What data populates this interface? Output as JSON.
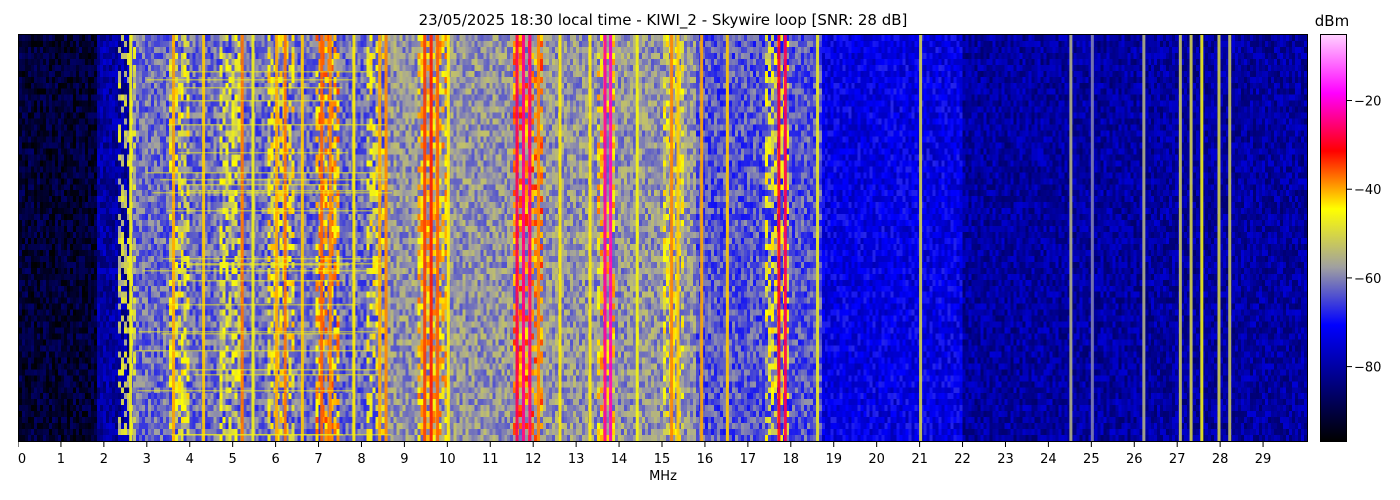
{
  "chart_data": {
    "type": "heatmap",
    "title": "23/05/2025 18:30 local time - KIWI_2 - Skywire loop [SNR: 28 dB]",
    "xlabel": "MHz",
    "ylabel": "",
    "xlim": [
      0,
      30
    ],
    "x_ticks": [
      0,
      1,
      2,
      3,
      4,
      5,
      6,
      7,
      8,
      9,
      10,
      11,
      12,
      13,
      14,
      15,
      16,
      17,
      18,
      19,
      20,
      21,
      22,
      23,
      24,
      25,
      26,
      27,
      28,
      29
    ],
    "colorbar": {
      "label": "dBm",
      "range": [
        -97,
        -5
      ],
      "ticks": [
        -20,
        -40,
        -60,
        -80
      ],
      "tick_labels": [
        "−20",
        "−40",
        "−60",
        "−80"
      ],
      "colors": [
        "#000000",
        "#000080",
        "#0000ff",
        "#a0a0a0",
        "#ffff00",
        "#ff0000",
        "#ff00ff",
        "#ffd0ff"
      ]
    },
    "noise_floor": [
      {
        "from": 0.0,
        "to": 1.8,
        "level": 0.06
      },
      {
        "from": 1.8,
        "to": 2.6,
        "level": 0.18
      },
      {
        "from": 2.6,
        "to": 8.5,
        "level": 0.38
      },
      {
        "from": 8.5,
        "to": 15.8,
        "level": 0.42
      },
      {
        "from": 15.8,
        "to": 18.7,
        "level": 0.36
      },
      {
        "from": 18.7,
        "to": 22.0,
        "level": 0.26
      },
      {
        "from": 22.0,
        "to": 30.0,
        "level": 0.18
      }
    ],
    "band_activity": [
      {
        "from": 2.3,
        "to": 2.7,
        "level": 0.55
      },
      {
        "from": 3.5,
        "to": 4.0,
        "level": 0.6
      },
      {
        "from": 4.7,
        "to": 5.2,
        "level": 0.58
      },
      {
        "from": 5.8,
        "to": 6.4,
        "level": 0.62
      },
      {
        "from": 6.9,
        "to": 7.5,
        "level": 0.68
      },
      {
        "from": 8.1,
        "to": 8.6,
        "level": 0.6
      },
      {
        "from": 9.3,
        "to": 9.95,
        "level": 0.66
      },
      {
        "from": 11.5,
        "to": 12.2,
        "level": 0.7
      },
      {
        "from": 13.5,
        "to": 13.9,
        "level": 0.65
      },
      {
        "from": 15.0,
        "to": 15.5,
        "level": 0.6
      },
      {
        "from": 17.4,
        "to": 17.9,
        "level": 0.6
      }
    ],
    "strong_lines": [
      {
        "freq": 2.6,
        "level": 0.55
      },
      {
        "freq": 3.6,
        "level": 0.62
      },
      {
        "freq": 4.3,
        "level": 0.6
      },
      {
        "freq": 5.2,
        "level": 0.65
      },
      {
        "freq": 5.45,
        "level": 0.55
      },
      {
        "freq": 6.0,
        "level": 0.62
      },
      {
        "freq": 6.2,
        "level": 0.65
      },
      {
        "freq": 6.6,
        "level": 0.6
      },
      {
        "freq": 7.05,
        "level": 0.66
      },
      {
        "freq": 7.25,
        "level": 0.64
      },
      {
        "freq": 7.8,
        "level": 0.58
      },
      {
        "freq": 8.4,
        "level": 0.62
      },
      {
        "freq": 8.55,
        "level": 0.64
      },
      {
        "freq": 9.45,
        "level": 0.68
      },
      {
        "freq": 9.6,
        "level": 0.7
      },
      {
        "freq": 9.75,
        "level": 0.66
      },
      {
        "freq": 10.0,
        "level": 0.58
      },
      {
        "freq": 11.6,
        "level": 0.76
      },
      {
        "freq": 11.75,
        "level": 0.79
      },
      {
        "freq": 11.9,
        "level": 0.78
      },
      {
        "freq": 12.1,
        "level": 0.64
      },
      {
        "freq": 12.6,
        "level": 0.58
      },
      {
        "freq": 13.3,
        "level": 0.58
      },
      {
        "freq": 13.65,
        "level": 0.8
      },
      {
        "freq": 13.78,
        "level": 0.82
      },
      {
        "freq": 14.4,
        "level": 0.56
      },
      {
        "freq": 15.2,
        "level": 0.64
      },
      {
        "freq": 15.35,
        "level": 0.6
      },
      {
        "freq": 15.9,
        "level": 0.62
      },
      {
        "freq": 16.5,
        "level": 0.6
      },
      {
        "freq": 17.7,
        "level": 0.74
      },
      {
        "freq": 17.85,
        "level": 0.76
      },
      {
        "freq": 18.6,
        "level": 0.54
      },
      {
        "freq": 21.0,
        "level": 0.5
      },
      {
        "freq": 24.5,
        "level": 0.45
      },
      {
        "freq": 25.0,
        "level": 0.4
      },
      {
        "freq": 26.2,
        "level": 0.45
      },
      {
        "freq": 27.05,
        "level": 0.48
      },
      {
        "freq": 27.3,
        "level": 0.5
      },
      {
        "freq": 27.55,
        "level": 0.55
      },
      {
        "freq": 27.95,
        "level": 0.5
      },
      {
        "freq": 28.2,
        "level": 0.48
      }
    ]
  }
}
